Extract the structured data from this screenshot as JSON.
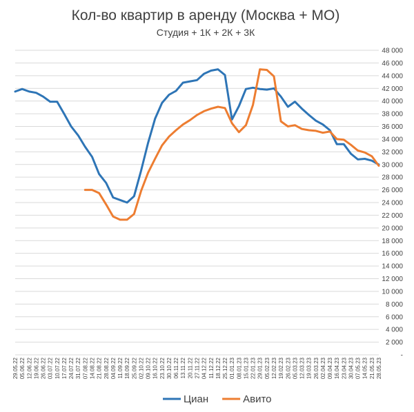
{
  "chart_data": {
    "type": "line",
    "title": "Кол-во квартир в аренду (Москва + МО)",
    "subtitle": "Студия + 1К + 2К + 3К",
    "xlabel": "",
    "ylabel": "",
    "ylim": [
      0,
      48000
    ],
    "y_ticks": [
      "-",
      "2 000",
      "4 000",
      "6 000",
      "8 000",
      "10 000",
      "12 000",
      "14 000",
      "16 000",
      "18 000",
      "20 000",
      "22 000",
      "24 000",
      "26 000",
      "28 000",
      "30 000",
      "32 000",
      "34 000",
      "36 000",
      "38 000",
      "40 000",
      "42 000",
      "44 000",
      "46 000",
      "48 000"
    ],
    "grid": true,
    "legend_position": "bottom",
    "x": [
      "29.05.22",
      "05.06.22",
      "12.06.22",
      "19.06.22",
      "26.06.22",
      "03.07.22",
      "10.07.22",
      "17.07.22",
      "24.07.22",
      "31.07.22",
      "07.08.22",
      "14.08.22",
      "21.08.22",
      "28.08.22",
      "04.09.22",
      "11.09.22",
      "18.09.22",
      "25.09.22",
      "02.10.22",
      "09.10.22",
      "16.10.22",
      "23.10.22",
      "30.10.22",
      "06.11.22",
      "13.11.22",
      "20.11.22",
      "27.11.22",
      "04.12.22",
      "11.12.22",
      "18.12.22",
      "25.12.22",
      "01.01.23",
      "08.01.23",
      "15.01.23",
      "22.01.23",
      "29.01.23",
      "05.02.23",
      "12.02.23",
      "19.02.23",
      "26.02.23",
      "05.03.23",
      "12.03.23",
      "19.03.23",
      "26.03.23",
      "02.04.23",
      "09.04.23",
      "16.04.23",
      "23.04.23",
      "30.04.23",
      "07.05.23",
      "14.05.23",
      "21.05.23",
      "28.05.23"
    ],
    "series": [
      {
        "name": "Циан",
        "color": "#2e75b6",
        "values": [
          41500,
          41900,
          41500,
          41300,
          40700,
          39900,
          39900,
          38000,
          36000,
          34600,
          32800,
          31200,
          28500,
          27100,
          24800,
          24400,
          24000,
          25000,
          29000,
          33400,
          37200,
          39700,
          41000,
          41600,
          42900,
          43100,
          43300,
          44300,
          44800,
          45000,
          44100,
          37100,
          39200,
          41900,
          42100,
          41900,
          41800,
          42000,
          40700,
          39100,
          39900,
          38800,
          37800,
          36900,
          36300,
          35400,
          33200,
          33200,
          31700,
          30800,
          30900,
          30600,
          30000
        ]
      },
      {
        "name": "Авито",
        "color": "#ed7d31",
        "values": [
          null,
          null,
          null,
          null,
          null,
          null,
          null,
          null,
          null,
          null,
          26000,
          26000,
          25500,
          23700,
          21800,
          21300,
          21300,
          22200,
          25800,
          28700,
          30900,
          33000,
          34400,
          35400,
          36300,
          37000,
          37800,
          38400,
          38800,
          39100,
          38900,
          36500,
          35100,
          36200,
          39400,
          45000,
          44900,
          43900,
          36800,
          36000,
          36200,
          35600,
          35400,
          35300,
          35000,
          35200,
          34000,
          33900,
          33100,
          32200,
          31900,
          31300,
          29800
        ]
      }
    ]
  }
}
